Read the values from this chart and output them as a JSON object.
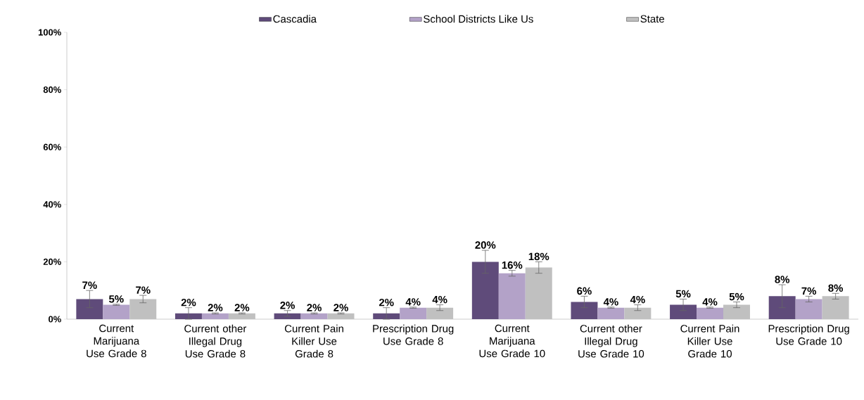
{
  "chart_data": {
    "type": "bar",
    "categories": [
      "Current Marijuana Use Grade 8",
      "Current other Illegal Drug Use Grade 8",
      "Current Pain Killer Use Grade 8",
      "Prescription Drug Use Grade 8",
      "Current Marijuana Use Grade 10",
      "Current other Illegal Drug Use Grade 10",
      "Current Pain Killer Use Grade 10",
      "Prescription Drug Use Grade 10"
    ],
    "series": [
      {
        "name": "Cascadia",
        "color": "#5f4b7a",
        "values": [
          7,
          2,
          2,
          2,
          20,
          6,
          5,
          8
        ],
        "errors": [
          3,
          2,
          1,
          2,
          4,
          2,
          2,
          4
        ],
        "value_labels": [
          "7%",
          "2%",
          "2%",
          "2%",
          "20%",
          "6%",
          "5%",
          "8%"
        ]
      },
      {
        "name": "School Districts Like Us",
        "color": "#b3a2c8",
        "values": [
          5,
          2,
          2,
          4,
          16,
          4,
          4,
          7
        ],
        "errors": [
          0.2,
          0.2,
          0.2,
          0.2,
          1,
          0.2,
          0.2,
          1
        ],
        "value_labels": [
          "5%",
          "2%",
          "2%",
          "4%",
          "16%",
          "4%",
          "4%",
          "7%"
        ]
      },
      {
        "name": "State",
        "color": "#c0c0c0",
        "values": [
          7,
          2,
          2,
          4,
          18,
          4,
          5,
          8
        ],
        "errors": [
          1.3,
          0.2,
          0.2,
          1,
          2,
          1,
          1,
          1
        ],
        "value_labels": [
          "7%",
          "2%",
          "2%",
          "4%",
          "18%",
          "4%",
          "5%",
          "8%"
        ]
      }
    ],
    "ylim": [
      0,
      100
    ],
    "yticks": [
      {
        "value": 0,
        "label": "0%"
      },
      {
        "value": 20,
        "label": "20%"
      },
      {
        "value": 40,
        "label": "40%"
      },
      {
        "value": 60,
        "label": "60%"
      },
      {
        "value": 80,
        "label": "80%"
      },
      {
        "value": 100,
        "label": "100%"
      }
    ],
    "grid": false,
    "legend": "top"
  }
}
